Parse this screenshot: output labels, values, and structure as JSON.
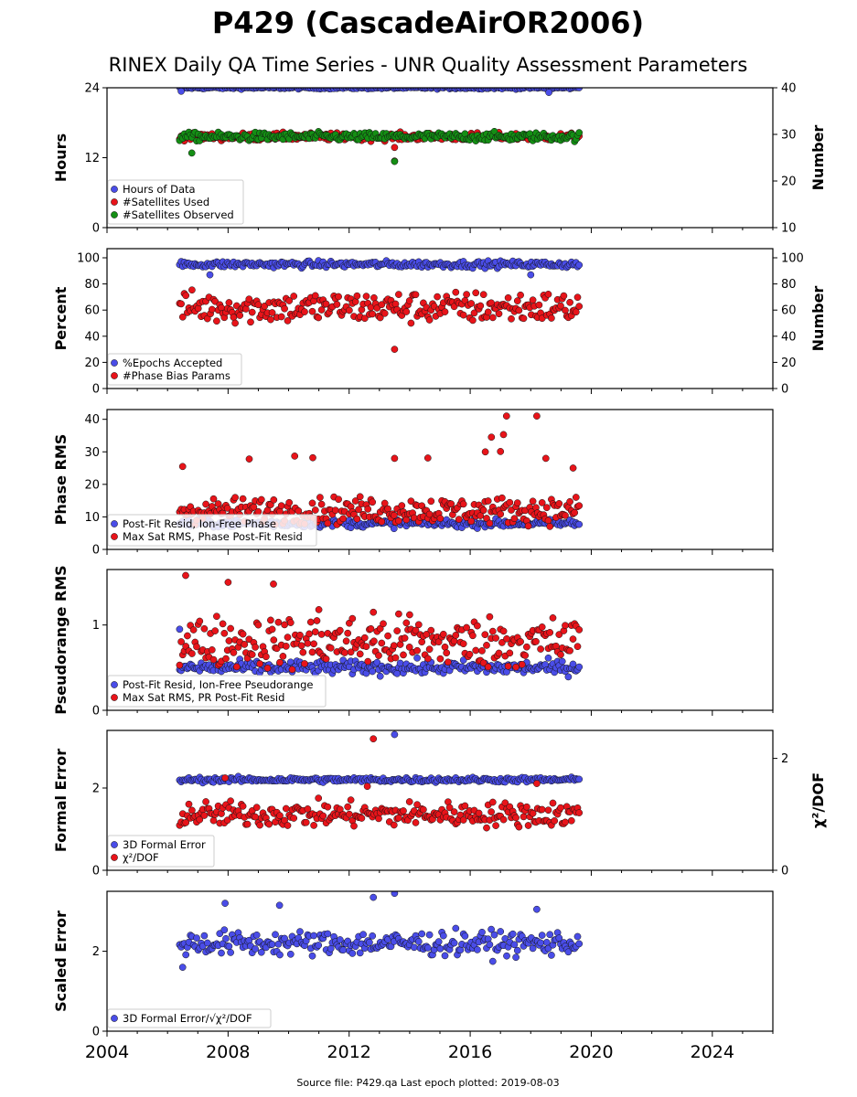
{
  "title": "P429 (CascadeAirOR2006)",
  "subtitle": "RINEX Daily QA Time Series - UNR Quality Assessment Parameters",
  "footer": "Source file: P429.qa  Last epoch plotted: 2019-08-03",
  "colors": {
    "blue": "#4a4de8",
    "red": "#e8141a",
    "green": "#148f14",
    "edge": "#111111"
  },
  "x_axis": {
    "ticks": [
      "2004",
      "2008",
      "2012",
      "2016",
      "2020",
      "2024"
    ],
    "range": [
      2004,
      2026
    ]
  },
  "chart_data": [
    {
      "type": "scatter",
      "ylabel": "Hours",
      "ylabel_right": "Number",
      "ylim": [
        0,
        24
      ],
      "yticks": [
        "0",
        "12",
        "24"
      ],
      "ylim_right": [
        10,
        40
      ],
      "yticks_right": [
        "10",
        "20",
        "30",
        "40"
      ],
      "legend_position": "lower-left",
      "series": [
        {
          "name": "Hours of Data",
          "color": "blue",
          "axis": "left",
          "x_range": [
            2006.4,
            2019.6
          ],
          "typical": 24,
          "spread": 0.2,
          "outliers": [
            [
              2006.45,
              23.4
            ],
            [
              2018.6,
              23.2
            ]
          ]
        },
        {
          "name": "#Satellites Used",
          "color": "red",
          "axis": "right",
          "x_range": [
            2006.4,
            2019.6
          ],
          "typical": 29.5,
          "spread": 0.8,
          "outliers": [
            [
              2009.2,
              30.0
            ],
            [
              2013.5,
              27.2
            ],
            [
              2013.5,
              24.3
            ]
          ]
        },
        {
          "name": "#Satellites Observed",
          "color": "green",
          "axis": "right",
          "x_range": [
            2006.4,
            2019.6
          ],
          "typical": 29.5,
          "spread": 0.9,
          "outliers": [
            [
              2006.8,
              26.0
            ],
            [
              2013.5,
              24.2
            ]
          ]
        }
      ]
    },
    {
      "type": "scatter",
      "ylabel": "Percent",
      "ylabel_right": "Number",
      "ylim": [
        0,
        107
      ],
      "yticks": [
        "0",
        "20",
        "40",
        "60",
        "80",
        "100"
      ],
      "ylim_right": [
        0,
        107
      ],
      "yticks_right": [
        "0",
        "20",
        "40",
        "60",
        "80",
        "100"
      ],
      "legend_position": "lower-left",
      "series": [
        {
          "name": "%Epochs Accepted",
          "color": "blue",
          "axis": "left",
          "x_range": [
            2006.4,
            2019.6
          ],
          "typical": 95,
          "spread": 2.5,
          "outliers": [
            [
              2007.4,
              87
            ],
            [
              2018.0,
              87
            ]
          ]
        },
        {
          "name": "#Phase Bias Params",
          "color": "red",
          "axis": "right",
          "x_range": [
            2006.4,
            2019.6
          ],
          "typical": 62,
          "spread": 12,
          "outliers": [
            [
              2013.5,
              30
            ]
          ]
        }
      ]
    },
    {
      "type": "scatter",
      "ylabel": "Phase RMS",
      "ylim": [
        0,
        43
      ],
      "yticks": [
        "0",
        "10",
        "20",
        "30",
        "40"
      ],
      "legend_position": "lower-left",
      "series": [
        {
          "name": "Post-Fit Resid, Ion-Free Phase",
          "color": "blue",
          "axis": "left",
          "x_range": [
            2006.4,
            2019.6
          ],
          "typical": 8,
          "spread": 1.2,
          "outliers": []
        },
        {
          "name": "Max Sat RMS, Phase Post-Fit Resid",
          "color": "red",
          "axis": "left",
          "x_range": [
            2006.4,
            2019.6
          ],
          "typical": 12,
          "spread": 4,
          "outliers": [
            [
              2006.5,
              25.5
            ],
            [
              2008.7,
              27.8
            ],
            [
              2010.2,
              28.7
            ],
            [
              2010.8,
              28.2
            ],
            [
              2013.5,
              28.0
            ],
            [
              2014.6,
              28.1
            ],
            [
              2016.5,
              30.0
            ],
            [
              2016.7,
              34.5
            ],
            [
              2017.1,
              35.3
            ],
            [
              2017.2,
              41.0
            ],
            [
              2017.0,
              30.1
            ],
            [
              2018.2,
              41.0
            ],
            [
              2018.5,
              28.0
            ],
            [
              2019.4,
              25.0
            ]
          ]
        }
      ]
    },
    {
      "type": "scatter",
      "ylabel": "Pseudorange RMS",
      "ylim": [
        0,
        1.65
      ],
      "yticks": [
        "0",
        "1"
      ],
      "legend_position": "lower-left",
      "series": [
        {
          "name": "Post-Fit Resid, Ion-Free Pseudorange",
          "color": "blue",
          "axis": "left",
          "x_range": [
            2006.4,
            2019.6
          ],
          "typical": 0.5,
          "spread": 0.08,
          "outliers": [
            [
              2006.4,
              0.95
            ]
          ]
        },
        {
          "name": "Max Sat RMS, PR Post-Fit Resid",
          "color": "red",
          "axis": "left",
          "x_range": [
            2006.4,
            2019.6
          ],
          "typical": 0.8,
          "spread": 0.3,
          "outliers": [
            [
              2006.6,
              1.58
            ],
            [
              2008.0,
              1.5
            ],
            [
              2009.5,
              1.48
            ],
            [
              2011.0,
              1.18
            ],
            [
              2012.8,
              1.15
            ],
            [
              2014.0,
              1.12
            ]
          ]
        }
      ]
    },
    {
      "type": "scatter",
      "ylabel": "Formal Error",
      "ylabel_right": "χ²/DOF",
      "ylim": [
        0,
        3.4
      ],
      "yticks": [
        "0",
        "2"
      ],
      "ylim_right": [
        0,
        2.5
      ],
      "yticks_right": [
        "0",
        "2"
      ],
      "legend_position": "lower-left",
      "series": [
        {
          "name": "3D Formal Error",
          "color": "blue",
          "axis": "left",
          "x_range": [
            2006.4,
            2019.6
          ],
          "typical": 2.2,
          "spread": 0.06,
          "outliers": [
            [
              2013.5,
              3.3
            ]
          ]
        },
        {
          "name": "χ²/DOF",
          "color": "red",
          "axis": "right",
          "x_range": [
            2006.4,
            2019.6
          ],
          "typical": 1.0,
          "spread": 0.22,
          "outliers": [
            [
              2007.9,
              1.65
            ],
            [
              2012.8,
              2.35
            ],
            [
              2012.6,
              1.5
            ],
            [
              2018.2,
              1.55
            ]
          ]
        }
      ]
    },
    {
      "type": "scatter",
      "ylabel": "Scaled Error",
      "ylim": [
        0,
        3.5
      ],
      "yticks": [
        "0",
        "2"
      ],
      "legend_position": "lower-left",
      "series": [
        {
          "name": "3D Formal Error/√χ²/DOF",
          "color": "blue",
          "axis": "left",
          "x_range": [
            2006.4,
            2019.6
          ],
          "typical": 2.2,
          "spread": 0.3,
          "outliers": [
            [
              2007.9,
              3.2
            ],
            [
              2009.7,
              3.15
            ],
            [
              2012.8,
              3.35
            ],
            [
              2013.5,
              3.45
            ],
            [
              2018.2,
              3.05
            ],
            [
              2006.5,
              1.6
            ]
          ]
        }
      ]
    }
  ]
}
